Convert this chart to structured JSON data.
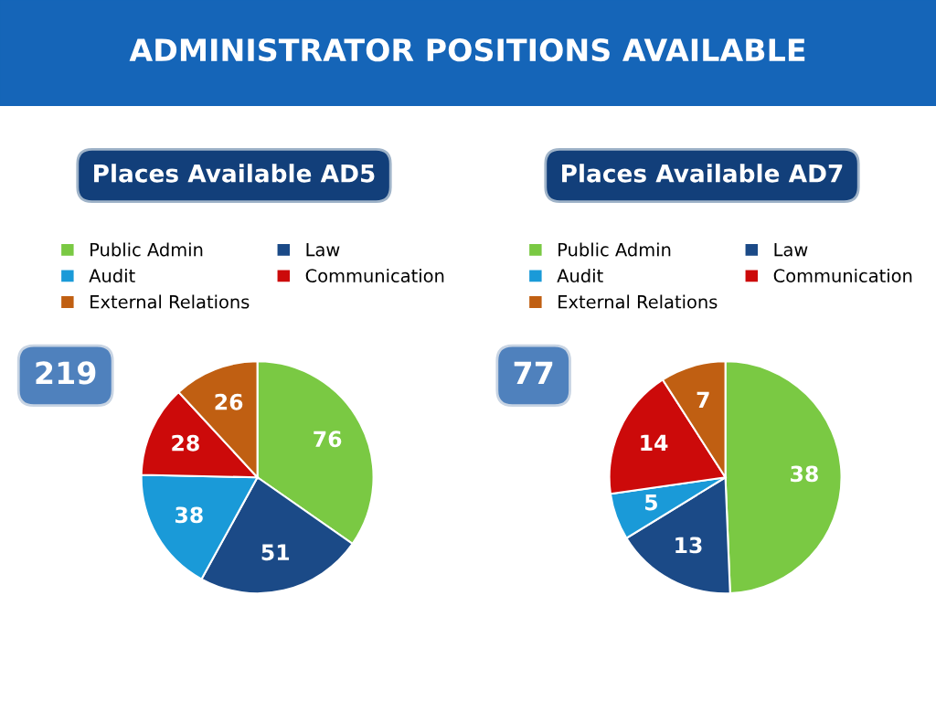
{
  "chart_data": [
    {
      "type": "pie",
      "title": "ADMINISTRATOR POSITIONS AVAILABLE",
      "subtitle": "Places Available AD5",
      "categories": [
        "Public Admin",
        "Law",
        "Audit",
        "Communication",
        "External Relations"
      ],
      "values": [
        76,
        51,
        38,
        28,
        26
      ],
      "colors": [
        "#7ac943",
        "#1b4a87",
        "#1a9ad8",
        "#cc0a0a",
        "#c05f12"
      ],
      "data_labels": true,
      "legend": "top",
      "annotations": [
        "219"
      ]
    },
    {
      "type": "pie",
      "subtitle": "Places Available AD7",
      "categories": [
        "Public Admin",
        "Law",
        "Audit",
        "Communication",
        "External Relations"
      ],
      "values": [
        38,
        13,
        5,
        14,
        7
      ],
      "colors": [
        "#7ac943",
        "#1b4a87",
        "#1a9ad8",
        "#cc0a0a",
        "#c05f12"
      ],
      "data_labels": true,
      "legend": "top",
      "annotations": [
        "77"
      ]
    }
  ]
}
